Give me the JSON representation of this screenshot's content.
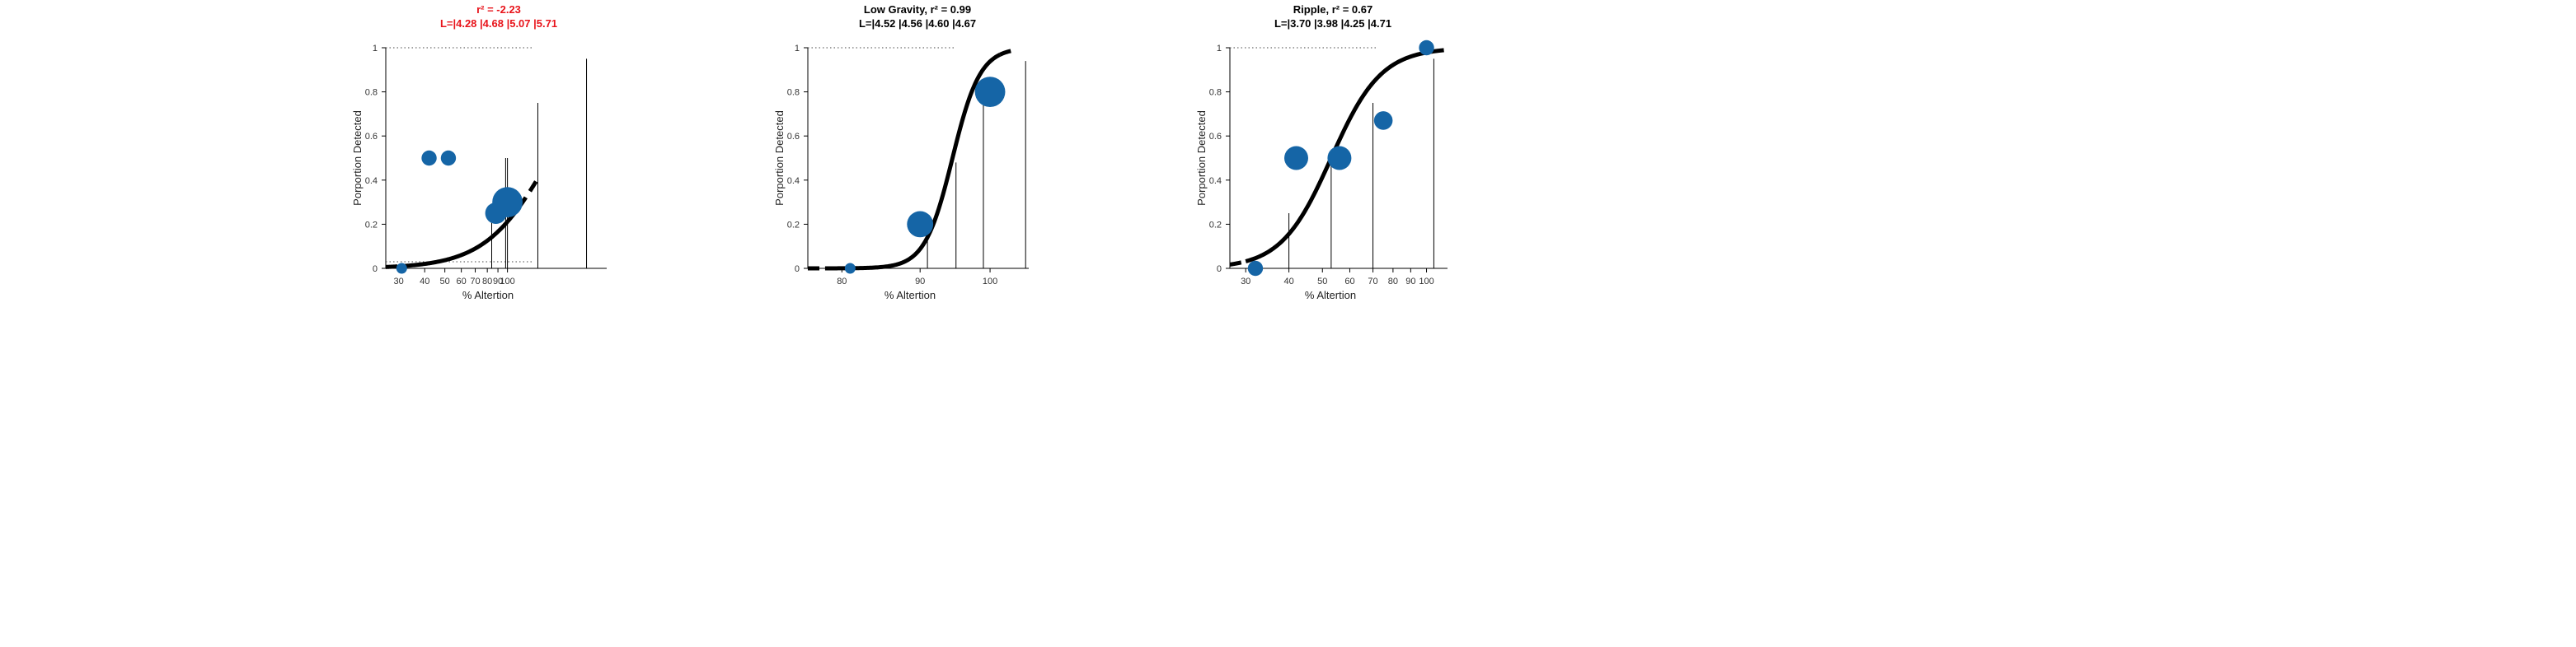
{
  "chart_data": [
    {
      "type": "scatter",
      "title_line1": "r² = -2.23",
      "title_line2": "L=|4.28 |4.68 |5.07 |5.71",
      "title_color": "#e8141b",
      "xlabel": "% Altertion",
      "ylabel": "Porportion Detected",
      "x_scale": "log",
      "xlim": [
        26,
        300
      ],
      "ylim": [
        0,
        1
      ],
      "xticks": [
        30,
        40,
        50,
        60,
        70,
        80,
        90,
        100
      ],
      "xtick_labels": [
        "30",
        "40",
        "50",
        "60",
        "70",
        "80",
        "90",
        "100"
      ],
      "yticks": [
        0,
        0.2,
        0.4,
        0.6,
        0.8,
        1
      ],
      "ytick_labels": [
        "0",
        "0.2",
        "0.4",
        "0.6",
        "0.8",
        "1"
      ],
      "points": [
        {
          "x": 31,
          "y": 0,
          "size": 1
        },
        {
          "x": 42,
          "y": 0.5,
          "size": 2
        },
        {
          "x": 52,
          "y": 0.5,
          "size": 2
        },
        {
          "x": 88,
          "y": 0.25,
          "size": 4
        },
        {
          "x": 100,
          "y": 0.3,
          "size": 8
        }
      ],
      "curve": {
        "x0": 160,
        "slope": 2.8,
        "x_start": 26,
        "x_end": 140,
        "solid_from": 30,
        "solid_to": 100
      },
      "vlines": [
        {
          "x": 84,
          "y": 0.27
        },
        {
          "x": 98,
          "y": 0.5
        },
        {
          "x": 100,
          "y": 0.5
        },
        {
          "x": 140,
          "y": 0.75
        },
        {
          "x": 240,
          "y": 0.95
        }
      ],
      "ref_lines": [
        0.03,
        1
      ],
      "color": "#1565a6"
    },
    {
      "type": "scatter",
      "title_line1": "Low Gravity, r² = 0.99",
      "title_line2": "L=|4.52 |4.56 |4.60 |4.67",
      "title_color": "#000000",
      "xlabel": "% Altertion",
      "ylabel": "Porportion Detected",
      "x_scale": "log",
      "xlim": [
        76,
        106
      ],
      "ylim": [
        0,
        1
      ],
      "xticks": [
        80,
        90,
        100
      ],
      "xtick_labels": [
        "80",
        "90",
        "100"
      ],
      "yticks": [
        0,
        0.2,
        0.4,
        0.6,
        0.8,
        1
      ],
      "ytick_labels": [
        "0",
        "0.2",
        "0.4",
        "0.6",
        "0.8",
        "1"
      ],
      "points": [
        {
          "x": 81,
          "y": 0,
          "size": 1
        },
        {
          "x": 90,
          "y": 0.2,
          "size": 6
        },
        {
          "x": 100,
          "y": 0.8,
          "size": 8
        }
      ],
      "curve": {
        "x0": 94.5,
        "slope": 48,
        "x_start": 76,
        "x_end": 104,
        "solid_from": 78,
        "solid_to": 101.5
      },
      "vlines": [
        {
          "x": 91,
          "y": 0.17
        },
        {
          "x": 95,
          "y": 0.48
        },
        {
          "x": 99,
          "y": 0.78
        },
        {
          "x": 105.5,
          "y": 0.94
        }
      ],
      "ref_lines": [
        1
      ],
      "color": "#1565a6"
    },
    {
      "type": "scatter",
      "title_line1": "Ripple, r² = 0.67",
      "title_line2": "L=|3.70 |3.98 |4.25 |4.71",
      "title_color": "#000000",
      "xlabel": "% Altertion",
      "ylabel": "Porportion Detected",
      "x_scale": "log",
      "xlim": [
        27,
        115
      ],
      "ylim": [
        0,
        1
      ],
      "xticks": [
        30,
        40,
        50,
        60,
        70,
        80,
        90,
        100
      ],
      "xtick_labels": [
        "30",
        "40",
        "50",
        "60",
        "70",
        "80",
        "90",
        "100"
      ],
      "yticks": [
        0,
        0.2,
        0.4,
        0.6,
        0.8,
        1
      ],
      "ytick_labels": [
        "0",
        "0.2",
        "0.4",
        "0.6",
        "0.8",
        "1"
      ],
      "points": [
        {
          "x": 32,
          "y": 0,
          "size": 2
        },
        {
          "x": 42,
          "y": 0.5,
          "size": 5
        },
        {
          "x": 56,
          "y": 0.5,
          "size": 5
        },
        {
          "x": 75,
          "y": 0.67,
          "size": 3
        },
        {
          "x": 100,
          "y": 1,
          "size": 2
        }
      ],
      "curve": {
        "x0": 53,
        "slope": 6,
        "x_start": 27,
        "x_end": 115,
        "solid_from": 30,
        "solid_to": 104
      },
      "vlines": [
        {
          "x": 40,
          "y": 0.25
        },
        {
          "x": 53,
          "y": 0.5
        },
        {
          "x": 70,
          "y": 0.75
        },
        {
          "x": 105,
          "y": 0.95
        }
      ],
      "ref_lines": [
        1
      ],
      "color": "#1565a6"
    }
  ]
}
